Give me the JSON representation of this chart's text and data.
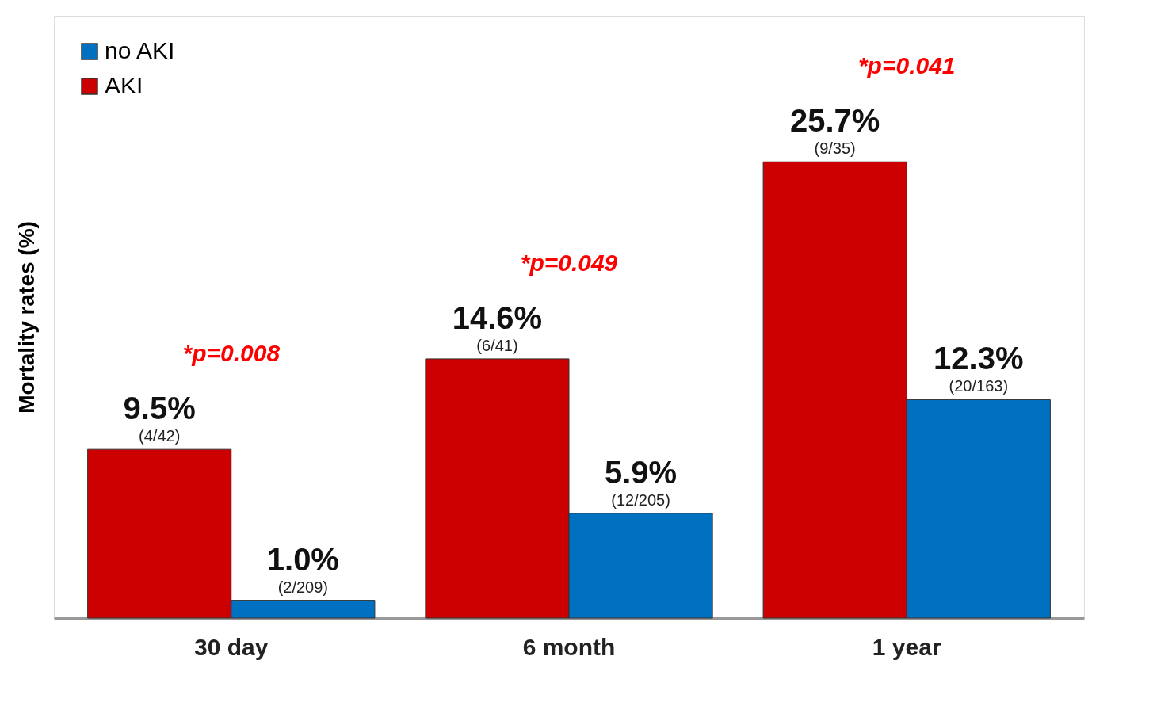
{
  "chart_data": {
    "type": "bar",
    "ylabel": "Mortality rates (%)",
    "categories": [
      "30 day",
      "6 month",
      "1 year"
    ],
    "series": [
      {
        "name": "AKI",
        "color": "#cc0000",
        "values": [
          9.5,
          14.6,
          25.7
        ],
        "value_labels": [
          "9.5%",
          "14.6%",
          "25.7%"
        ]
      },
      {
        "name": "no AKI",
        "color": "#0070c0",
        "values": [
          1.0,
          5.9,
          12.3
        ],
        "value_labels": [
          "1.0%",
          "5.9%",
          "12.3%"
        ]
      }
    ],
    "tick_labels": "x",
    "legend": "top left",
    "annotations": [
      "(4/42)",
      "(6/41)",
      "(9/35)",
      "(2/209)",
      "(12/205)",
      "(20/163)",
      "*p=0.008",
      "*p=0.049",
      "*p=0.041"
    ]
  }
}
